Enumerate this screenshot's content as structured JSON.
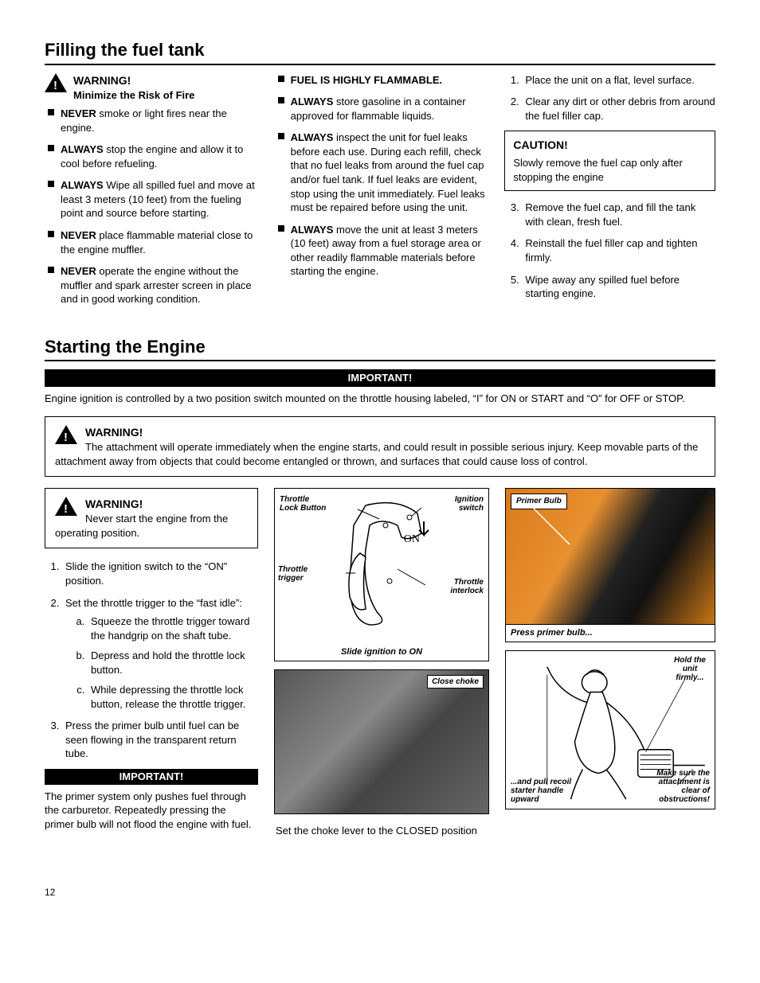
{
  "section1": {
    "title": "Filling the fuel tank",
    "warning_label": "WARNING!",
    "warning_sub": "Minimize the Risk of Fire",
    "col1": [
      {
        "bold": "NEVER",
        "text": " smoke or light fires near the engine."
      },
      {
        "bold": "ALWAYS",
        "text": " stop the engine and allow it to cool before refueling."
      },
      {
        "bold": "ALWAYS",
        "text": " Wipe all spilled fuel and move at least 3 meters (10 feet) from the fueling point and source before starting."
      },
      {
        "bold": "NEVER",
        "text": " place flammable material close to the engine muffler."
      },
      {
        "bold": "NEVER",
        "text": " operate the engine without the muffler and spark arrester screen in place and in good working condition."
      }
    ],
    "col2_first": "FUEL IS HIGHLY FLAMMABLE.",
    "col2": [
      {
        "bold": "ALWAYS",
        "text": " store gasoline in a container approved for flammable liquids."
      },
      {
        "bold": "ALWAYS",
        "text": " inspect the unit for fuel leaks before each use. During each refill, check that no fuel leaks from around the fuel cap and/or fuel tank. If fuel leaks are evident, stop using the unit immediately. Fuel leaks must be repaired before using the unit."
      },
      {
        "bold": "ALWAYS",
        "text": " move the unit at least 3 meters (10 feet) away from a fuel storage area or other readily flammable materials before starting the engine."
      }
    ],
    "col3_steps_a": [
      "Place the unit on a flat, level surface.",
      "Clear any dirt or other debris from around the fuel filler cap."
    ],
    "caution_title": "CAUTION!",
    "caution_text": "Slowly remove the fuel cap only after stopping the engine",
    "col3_steps_b": [
      "Remove the fuel cap, and fill the tank with clean, fresh fuel.",
      "Reinstall the fuel filler cap and tighten firmly.",
      "Wipe away any spilled fuel before starting engine."
    ]
  },
  "section2": {
    "title": "Starting the Engine",
    "important_bar": "IMPORTANT!",
    "intro": "Engine ignition is controlled by a two position switch mounted on the throttle housing labeled, “I” for ON or START and  “O” for OFF or STOP.",
    "warn1_title": "WARNING!",
    "warn1_text": "The attachment will operate immediately when the engine starts, and could result in possible serious injury. Keep movable parts of the attachment away from objects that could become entangled or thrown, and surfaces that could cause loss of control.",
    "warn2_title": "WARNING!",
    "warn2_text": "Never start the engine from the operating position.",
    "steps": [
      "Slide the ignition switch to the “ON” position.",
      "Set the throttle trigger to the “fast idle”:",
      "Press the primer bulb until fuel can be seen flowing in the transparent return tube."
    ],
    "substeps": [
      "Squeeze the throttle trigger toward the handgrip on the shaft tube.",
      "Depress and hold the throttle lock button.",
      "While depressing the throttle lock button, release the throttle trigger."
    ],
    "important2": "IMPORTANT!",
    "primer_note": "The primer system only pushes fuel through the carburetor. Repeatedly pressing the primer bulb will not flood the engine with fuel.",
    "fig1": {
      "throttle_lock": "Throttle Lock Button",
      "ignition": "Ignition switch",
      "trigger": "Throttle trigger",
      "interlock": "Throttle interlock",
      "on": "ON",
      "caption": "Slide ignition to ON"
    },
    "fig2": {
      "choke": "Close choke",
      "caption": "Set the choke lever to the CLOSED position"
    },
    "fig3": {
      "primer": "Primer Bulb",
      "caption": "Press primer bulb..."
    },
    "fig4": {
      "hold": "Hold the unit firmly...",
      "pull": "...and pull recoil starter handle upward",
      "clear": "Make sure the attachment is clear of obstructions!"
    }
  },
  "page_number": "12"
}
